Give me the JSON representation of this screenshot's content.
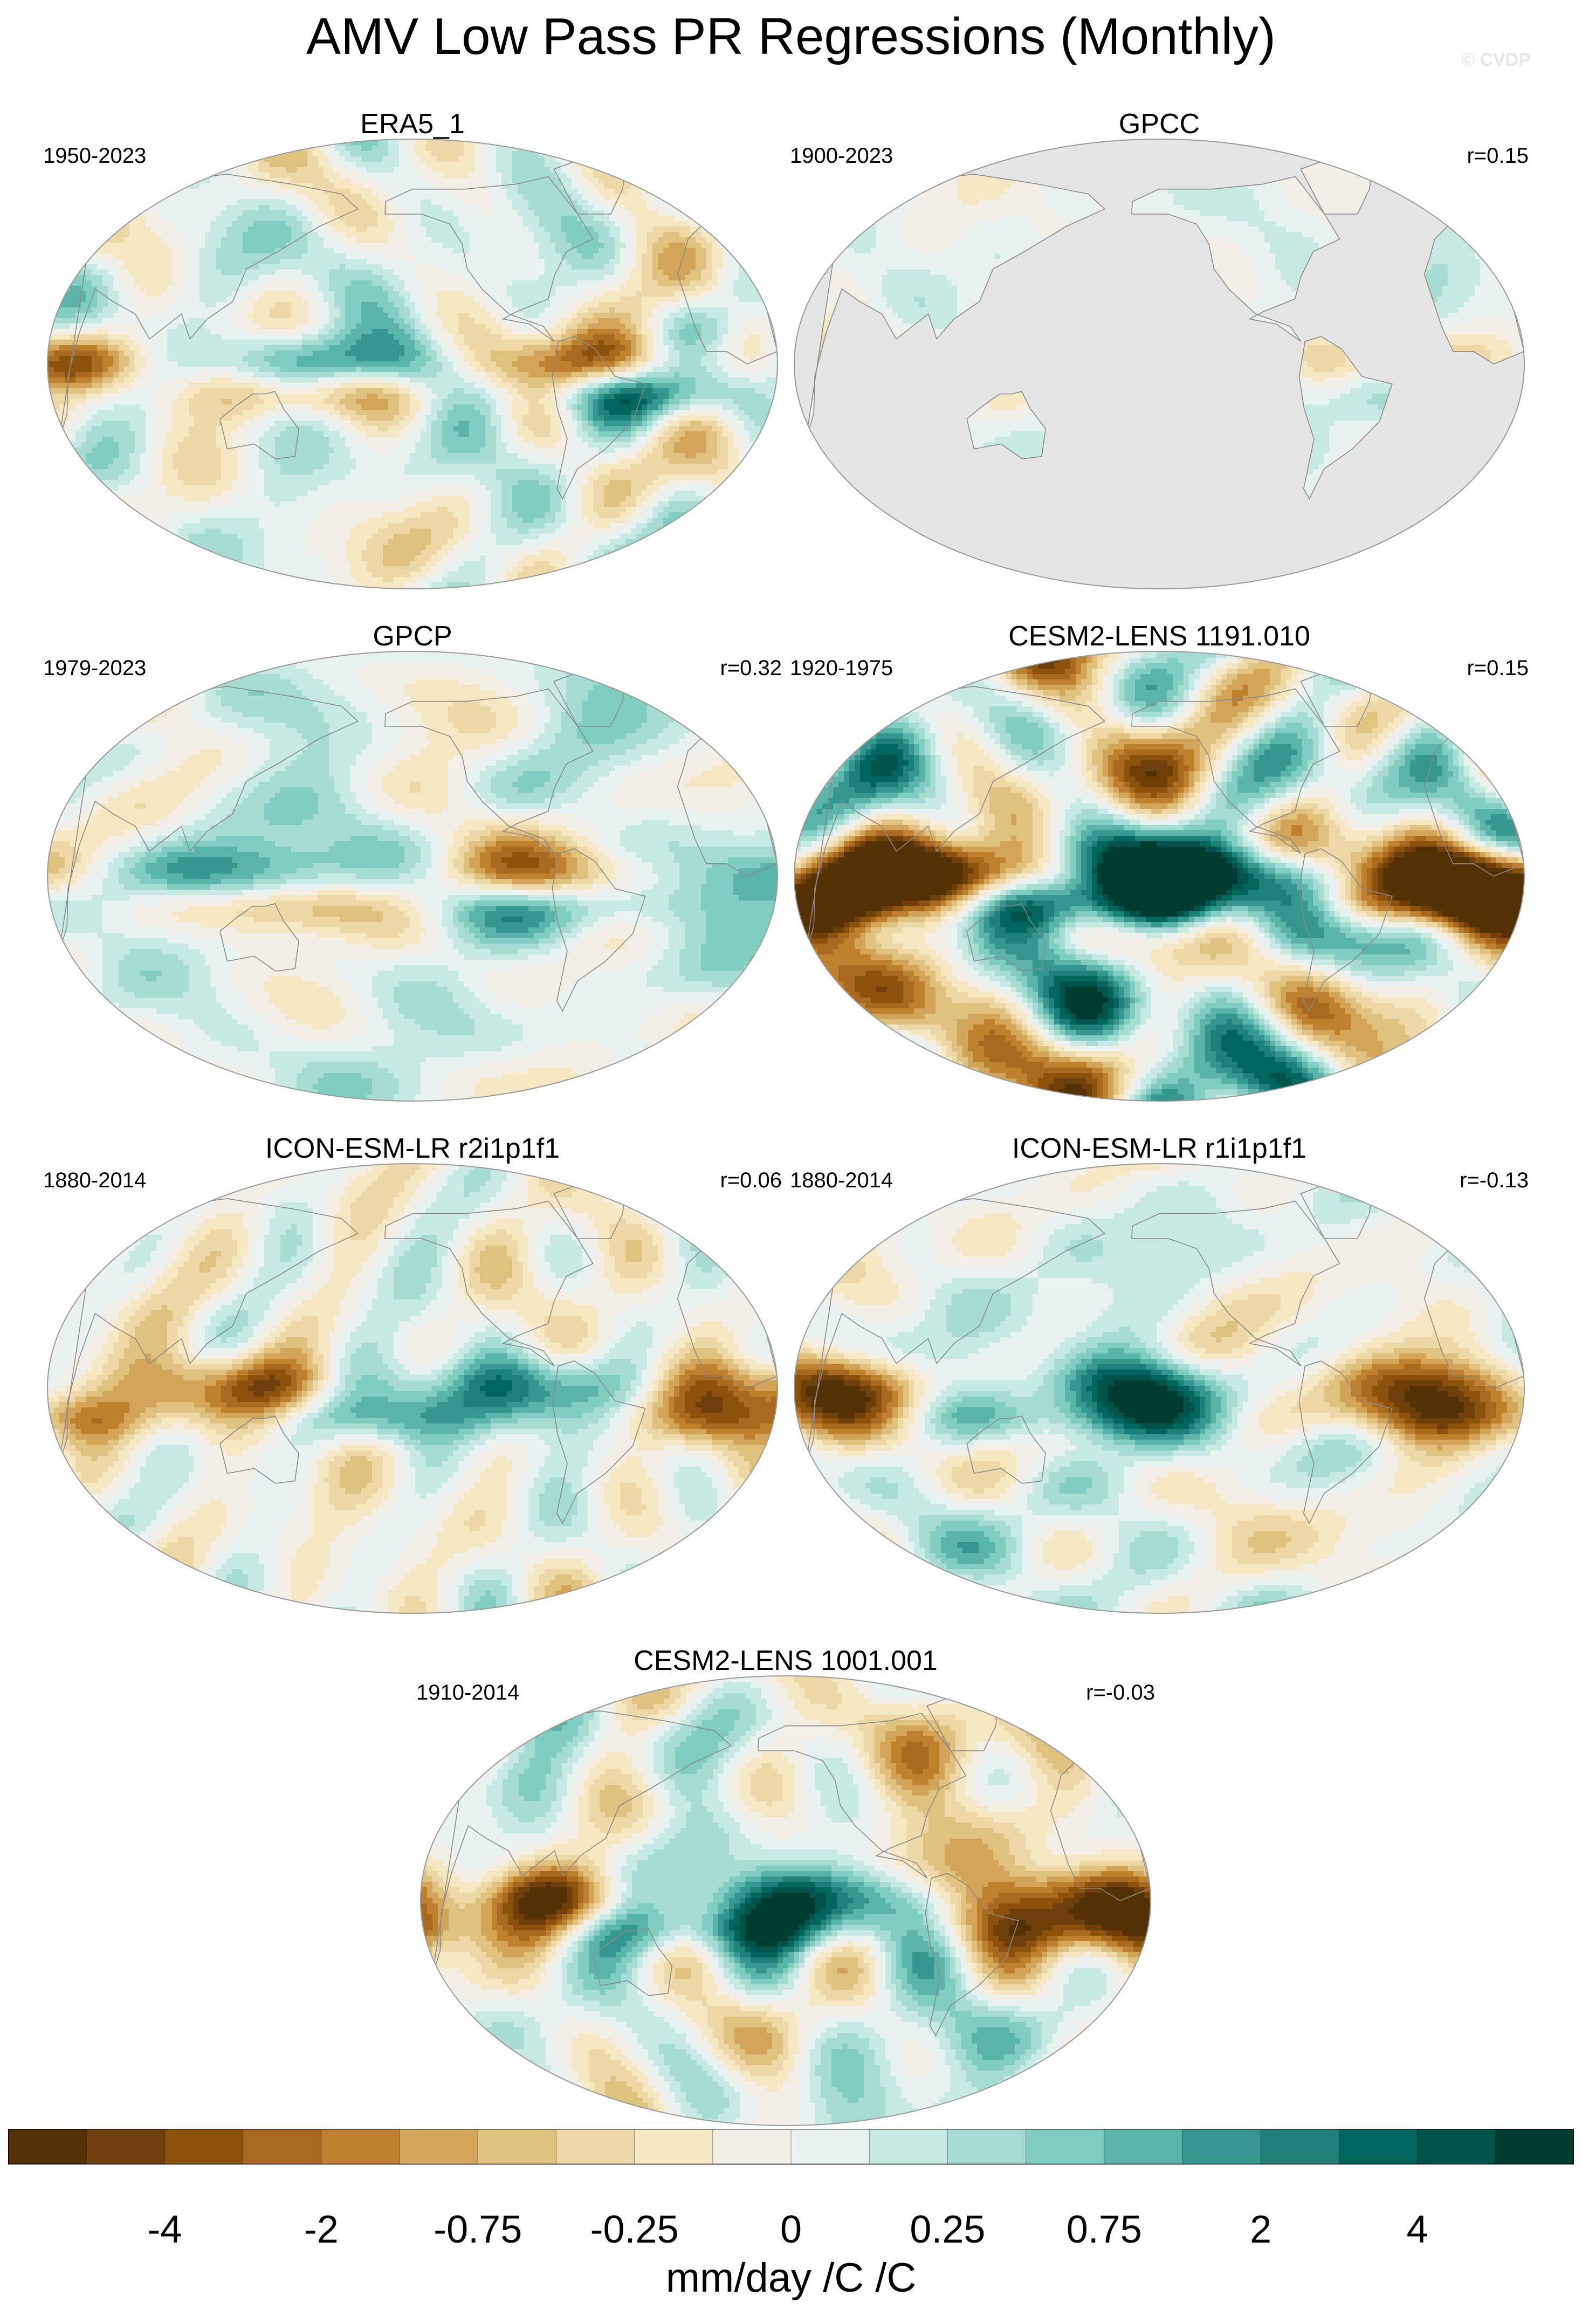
{
  "title": "AMV Low Pass PR Regressions (Monthly)",
  "watermark": "© CVDP",
  "panels": [
    {
      "title": "ERA5_1",
      "years": "1950-2023",
      "r": "",
      "ocean_masked": false,
      "seed": 11,
      "intensity": 0.9,
      "bias": 0.05
    },
    {
      "title": "GPCC",
      "years": "1900-2023",
      "r": "r=0.15",
      "ocean_masked": true,
      "seed": 23,
      "intensity": 0.55,
      "bias": 0.1
    },
    {
      "title": "GPCP",
      "years": "1979-2023",
      "r": "r=0.32",
      "ocean_masked": false,
      "seed": 37,
      "intensity": 0.75,
      "bias": 0.1
    },
    {
      "title": "CESM2-LENS 1191.010",
      "years": "1920-1975",
      "r": "r=0.15",
      "ocean_masked": false,
      "seed": 41,
      "intensity": 1.6,
      "bias": 0.0
    },
    {
      "title": "ICON-ESM-LR r2i1p1f1",
      "years": "1880-2014",
      "r": "r=0.06",
      "ocean_masked": false,
      "seed": 53,
      "intensity": 0.8,
      "bias": -0.05
    },
    {
      "title": "ICON-ESM-LR r1i1p1f1",
      "years": "1880-2014",
      "r": "r=-0.13",
      "ocean_masked": false,
      "seed": 67,
      "intensity": 0.95,
      "bias": 0.05
    },
    {
      "title": "CESM2-LENS 1001.001",
      "years": "1910-2014",
      "r": "r=-0.03",
      "ocean_masked": false,
      "seed": 79,
      "intensity": 1.1,
      "bias": 0.0
    }
  ],
  "colorbar": {
    "colors": [
      "#543005",
      "#6e3f0b",
      "#8c510a",
      "#a86920",
      "#bf812d",
      "#d3a55a",
      "#dfc27d",
      "#efd8a8",
      "#f6e8c3",
      "#f4efe6",
      "#e8f3f1",
      "#c7eae5",
      "#a6dcd3",
      "#80cdc1",
      "#5ab4a9",
      "#35978f",
      "#1f8078",
      "#01665e",
      "#01534b",
      "#003c30"
    ],
    "tick_labels": [
      "-4",
      "-2",
      "-0.75",
      "-0.25",
      "0",
      "0.25",
      "0.75",
      "2",
      "4"
    ],
    "units": "mm/day /C /C"
  },
  "chart_data": {
    "type": "heatmap",
    "title": "AMV Low Pass PR Regressions (Monthly)",
    "projection": "Robinson-like global maps",
    "units": "mm/day /C /C",
    "colorbar_levels": [
      -4,
      -3,
      -2,
      -1,
      -0.75,
      -0.5,
      -0.25,
      -0.1,
      0,
      0.1,
      0.25,
      0.5,
      0.75,
      1,
      2,
      3,
      4
    ],
    "panels": [
      {
        "name": "ERA5_1",
        "years": "1950-2023",
        "r": null
      },
      {
        "name": "GPCC",
        "years": "1900-2023",
        "r": 0.15
      },
      {
        "name": "GPCP",
        "years": "1979-2023",
        "r": 0.32
      },
      {
        "name": "CESM2-LENS 1191.010",
        "years": "1920-1975",
        "r": 0.15
      },
      {
        "name": "ICON-ESM-LR r2i1p1f1",
        "years": "1880-2014",
        "r": 0.06
      },
      {
        "name": "ICON-ESM-LR r1i1p1f1",
        "years": "1880-2014",
        "r": -0.13
      },
      {
        "name": "CESM2-LENS 1001.001",
        "years": "1910-2014",
        "r": -0.03
      }
    ]
  }
}
